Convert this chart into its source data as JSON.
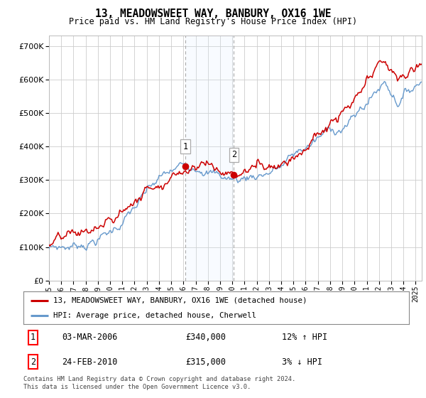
{
  "title": "13, MEADOWSWEET WAY, BANBURY, OX16 1WE",
  "subtitle": "Price paid vs. HM Land Registry's House Price Index (HPI)",
  "ylabel_values": [
    0,
    100000,
    200000,
    300000,
    400000,
    500000,
    600000,
    700000
  ],
  "ylim": [
    0,
    730000
  ],
  "xlim_start": 1995.0,
  "xlim_end": 2025.5,
  "transaction1": {
    "date": "03-MAR-2006",
    "price": 340000,
    "hpi_change": "12% ↑ HPI",
    "label": "1",
    "year": 2006.17
  },
  "transaction2": {
    "date": "24-FEB-2010",
    "price": 315000,
    "hpi_change": "3% ↓ HPI",
    "label": "2",
    "year": 2010.13
  },
  "legend_line1": "13, MEADOWSWEET WAY, BANBURY, OX16 1WE (detached house)",
  "legend_line2": "HPI: Average price, detached house, Cherwell",
  "footer": "Contains HM Land Registry data © Crown copyright and database right 2024.\nThis data is licensed under the Open Government Licence v3.0.",
  "line_color_price": "#cc0000",
  "line_color_hpi": "#6699cc",
  "shade_color": "#ddeeff",
  "background_color": "#ffffff",
  "grid_color": "#cccccc"
}
